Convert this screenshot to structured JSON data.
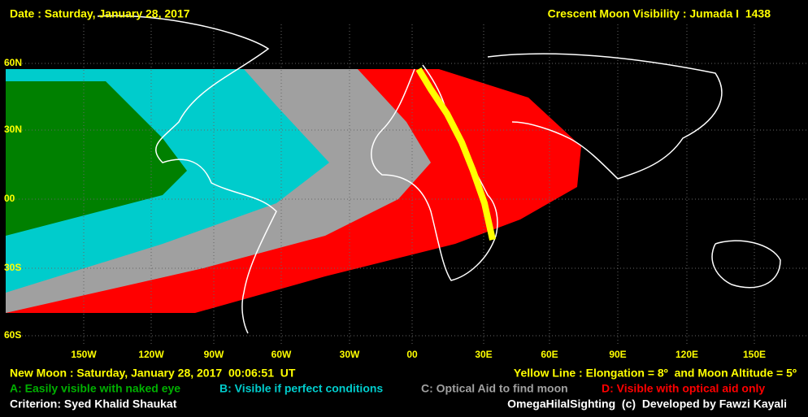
{
  "header": {
    "date": "Date : Saturday, January 28, 2017",
    "title": "Crescent Moon Visibility : Jumada I  1438"
  },
  "latitude_labels": [
    "60N",
    "30N",
    "00",
    "30S",
    "60S"
  ],
  "longitude_labels": [
    "150W",
    "120W",
    "90W",
    "60W",
    "30W",
    "00",
    "30E",
    "60E",
    "90E",
    "120E",
    "150E"
  ],
  "footer": {
    "new_moon": "New Moon : Saturday, January 28, 2017  00:06:51  UT",
    "yellow_line": "Yellow Line : Elongation = 8º  and Moon Altitude = 5º",
    "legend": [
      {
        "label": "A: Easily visible with naked eye",
        "color": "#008000"
      },
      {
        "label": "B: Visible if perfect conditions",
        "color": "#00cccc"
      },
      {
        "label": "C: Optical Aid to find moon",
        "color": "#a0a0a0"
      },
      {
        "label": "D: Visible with optical aid only",
        "color": "#ff0000"
      }
    ],
    "criterion": "Criterion: Syed Khalid Shaukat",
    "credit": "OmegaHilalSighting  (c)  Developed by Fawzi Kayali"
  }
}
